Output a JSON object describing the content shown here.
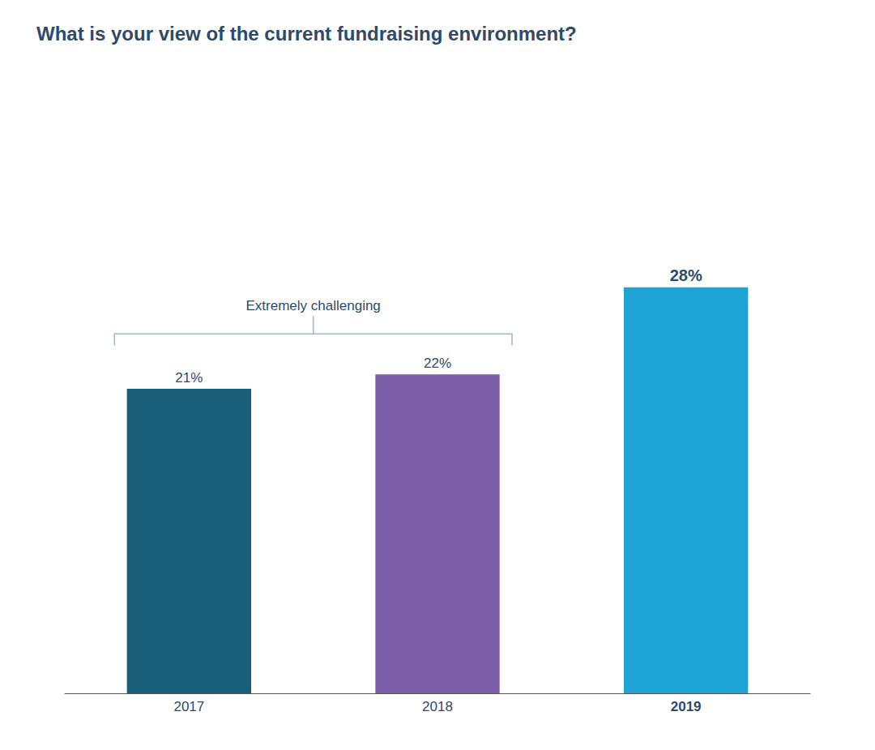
{
  "chart_data": {
    "type": "bar",
    "title": "What is your view of the current fundraising environment?",
    "categories": [
      "2017",
      "2018",
      "2019"
    ],
    "values": [
      21,
      22,
      28
    ],
    "value_labels": [
      "21%",
      "22%",
      "28%"
    ],
    "colors": [
      "#1a5f7a",
      "#7b5ea7",
      "#1da3d4"
    ],
    "ylim": [
      0,
      40
    ],
    "grid": false,
    "data_labels": true,
    "tick_labels": "x",
    "annotations": [
      {
        "text": "Extremely challenging",
        "categories": [
          "2017",
          "2018"
        ]
      }
    ]
  }
}
